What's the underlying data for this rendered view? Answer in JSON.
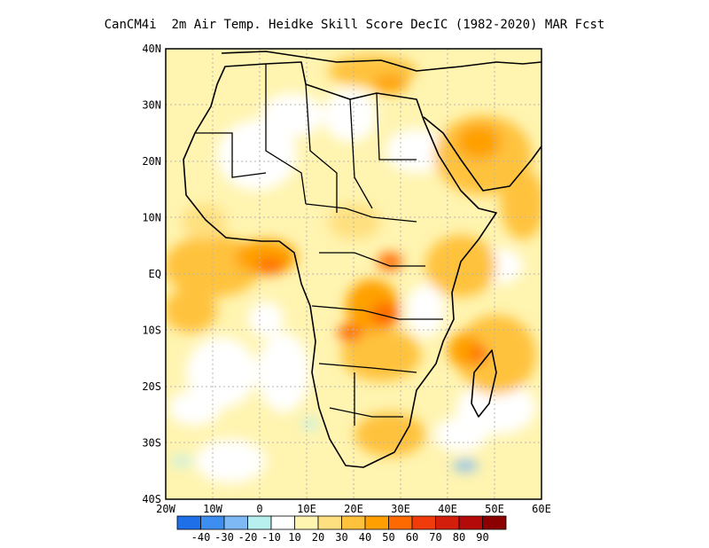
{
  "title": "CanCM4i  2m Air Temp. Heidke Skill Score DecIC (1982-2020) MAR Fcst",
  "map": {
    "region": "Africa",
    "lon_range": [
      -20,
      60
    ],
    "lat_range": [
      -40,
      40
    ],
    "grid": "dotted",
    "lat_ticks": [
      "40N",
      "30N",
      "20N",
      "10N",
      "EQ",
      "10S",
      "20S",
      "30S",
      "40S"
    ],
    "lon_ticks": [
      "20W",
      "10W",
      "0",
      "10E",
      "20E",
      "30E",
      "40E",
      "50E",
      "60E"
    ]
  },
  "colorbar": {
    "boundary_labels": [
      "-40",
      "-30",
      "-20",
      "-10",
      "10",
      "20",
      "30",
      "40",
      "50",
      "60",
      "70",
      "80",
      "90"
    ],
    "colors": [
      "#1f6fe8",
      "#3c8ef0",
      "#7fb9f5",
      "#b8f0f0",
      "#ffffff",
      "#fff4b0",
      "#ffe080",
      "#ffc23c",
      "#ffa000",
      "#ff6a00",
      "#f03c0a",
      "#d21e0a",
      "#b40a0a",
      "#8c0000"
    ]
  }
}
